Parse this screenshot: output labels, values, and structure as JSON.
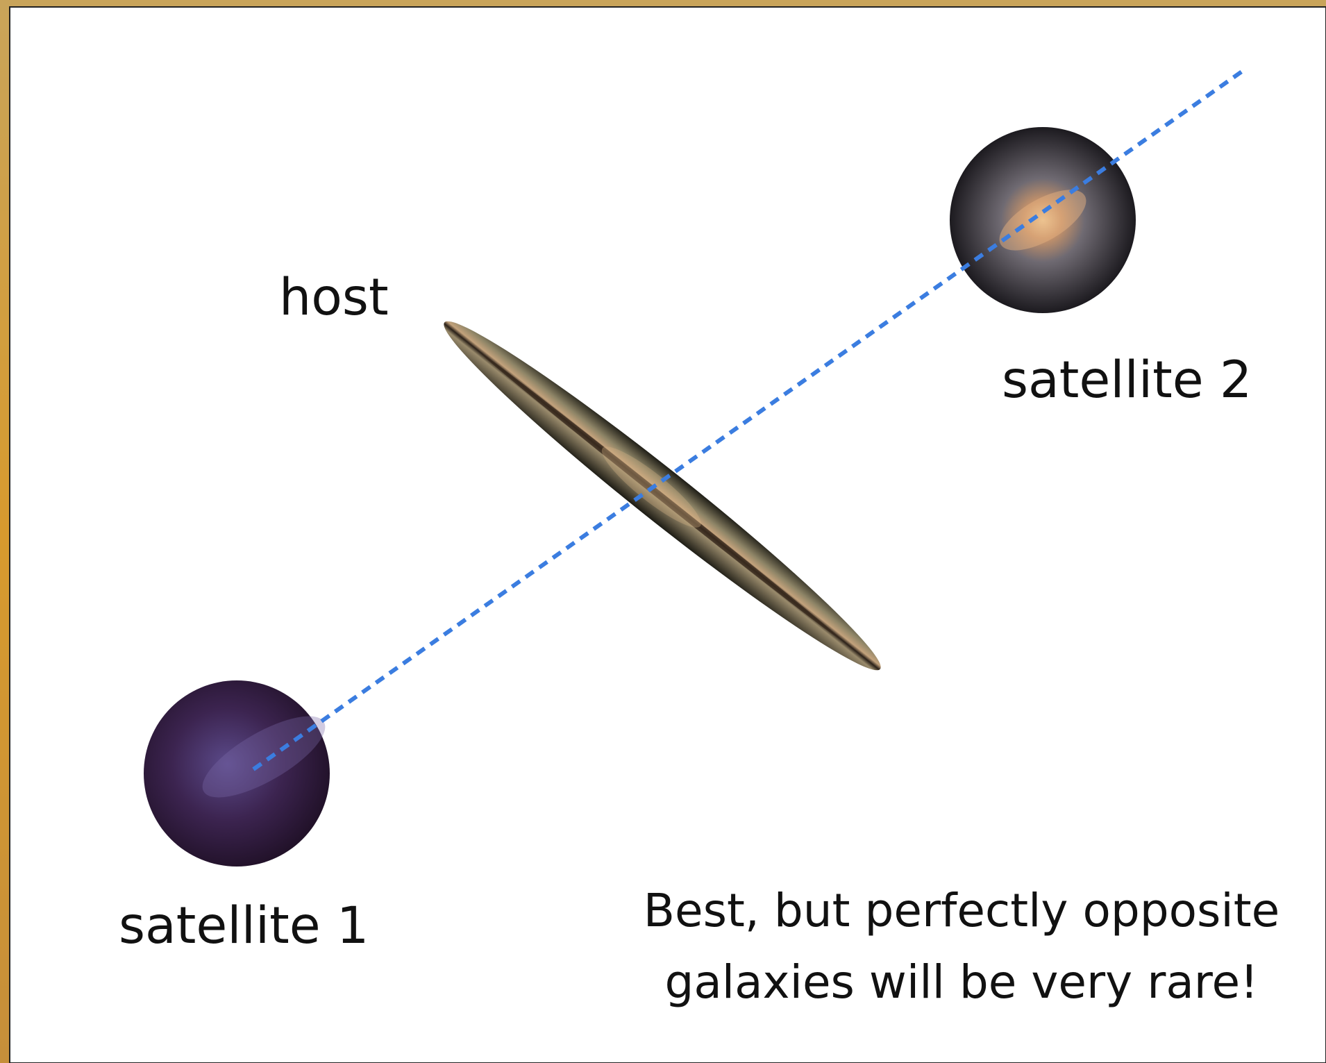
{
  "labels": {
    "host": "host",
    "satellite_2": "satellite 2",
    "satellite_1": "satellite 1"
  },
  "caption": [
    "Best, but perfectly opposite",
    "galaxies will be very rare!"
  ]
}
